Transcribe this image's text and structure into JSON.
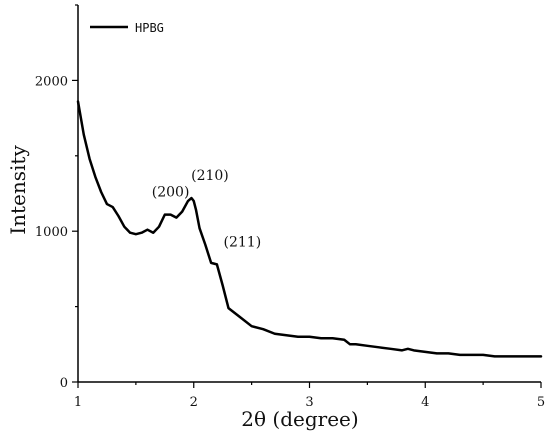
{
  "chart_data": {
    "type": "line",
    "title": "",
    "xlabel": "2θ (degree)",
    "ylabel": "Intensity",
    "xlim": [
      1,
      5
    ],
    "ylim": [
      0,
      2500
    ],
    "x_ticks": [
      1,
      2,
      3,
      4,
      5
    ],
    "y_ticks": [
      0,
      1000,
      2000
    ],
    "grid": false,
    "legend": "top-left",
    "series": [
      {
        "name": "HPBG",
        "color": "#000000",
        "x": [
          1.0,
          1.05,
          1.1,
          1.15,
          1.2,
          1.25,
          1.3,
          1.35,
          1.4,
          1.45,
          1.5,
          1.55,
          1.6,
          1.65,
          1.7,
          1.75,
          1.8,
          1.85,
          1.9,
          1.95,
          1.98,
          2.0,
          2.02,
          2.05,
          2.1,
          2.15,
          2.2,
          2.25,
          2.3,
          2.4,
          2.5,
          2.6,
          2.7,
          2.8,
          2.9,
          3.0,
          3.1,
          3.2,
          3.3,
          3.35,
          3.4,
          3.5,
          3.6,
          3.7,
          3.8,
          3.85,
          3.9,
          4.0,
          4.1,
          4.2,
          4.3,
          4.4,
          4.5,
          4.6,
          4.7,
          4.8,
          4.9,
          5.0
        ],
        "y": [
          1860,
          1640,
          1480,
          1360,
          1260,
          1180,
          1160,
          1100,
          1030,
          990,
          980,
          990,
          1010,
          990,
          1030,
          1110,
          1110,
          1090,
          1130,
          1200,
          1220,
          1200,
          1140,
          1020,
          910,
          790,
          780,
          640,
          490,
          430,
          370,
          350,
          320,
          310,
          300,
          300,
          290,
          290,
          280,
          250,
          250,
          240,
          230,
          220,
          210,
          220,
          210,
          200,
          190,
          190,
          180,
          180,
          180,
          170,
          170,
          170,
          170,
          170
        ]
      }
    ],
    "annotations": [
      {
        "text": "(200)",
        "x": 1.8,
        "y": 1230
      },
      {
        "text": "(210)",
        "x": 2.14,
        "y": 1340
      },
      {
        "text": "(211)",
        "x": 2.42,
        "y": 900
      }
    ]
  }
}
